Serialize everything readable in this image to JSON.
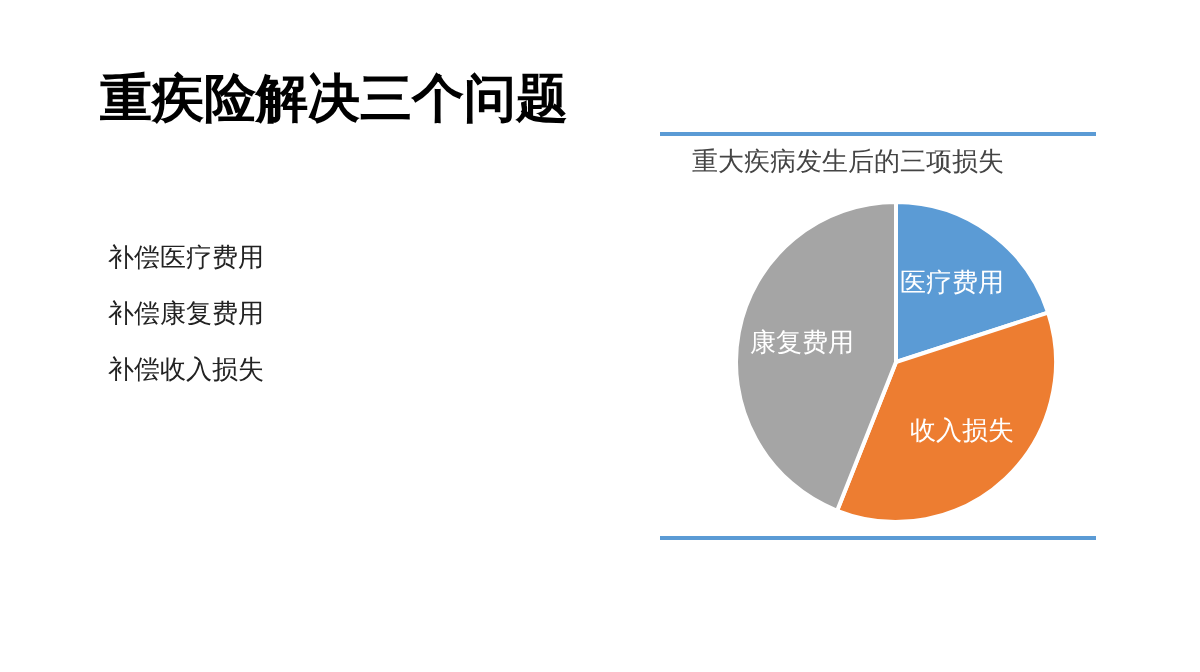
{
  "chart_data": {
    "type": "pie",
    "title": "重疾险解决三个问题",
    "subtitle": "重大疾病发生后的三项损失",
    "categories": [
      "医疗费用",
      "收入损失",
      "康复费用"
    ],
    "values": [
      20,
      36,
      44
    ],
    "colors": [
      "#5b9bd5",
      "#ed7d31",
      "#a5a5a5"
    ],
    "annotations": [
      "补偿医疗费用",
      "补偿康复费用",
      "补偿收入损失"
    ],
    "legend": false
  }
}
